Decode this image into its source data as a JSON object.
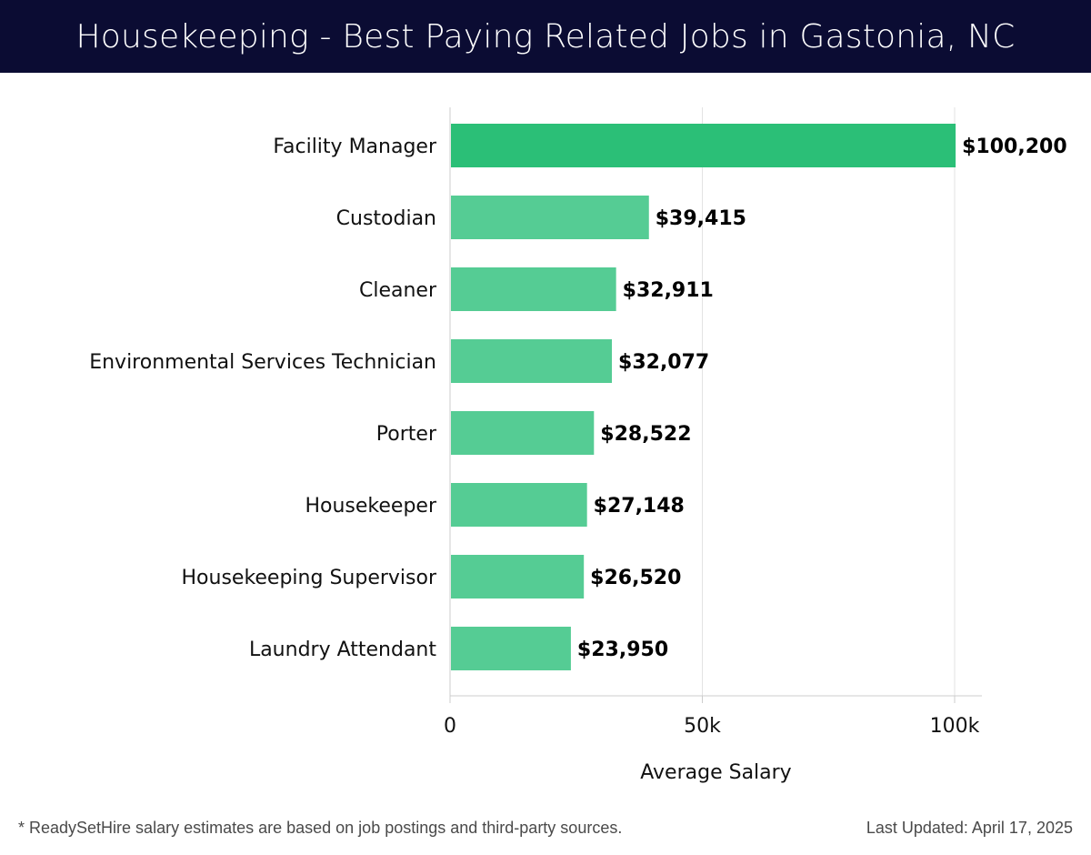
{
  "header": {
    "title": "Housekeeping - Best Paying Related Jobs in Gastonia, NC"
  },
  "chart_data": {
    "type": "bar",
    "orientation": "horizontal",
    "title": "Housekeeping - Best Paying Related Jobs in Gastonia, NC",
    "xlabel": "Average Salary",
    "ylabel": "",
    "xlim": [
      0,
      105000
    ],
    "x_ticks": [
      0,
      50000,
      100000
    ],
    "x_tick_labels": [
      "0",
      "50k",
      "100k"
    ],
    "grid": "vertical",
    "categories": [
      "Facility Manager",
      "Custodian",
      "Cleaner",
      "Environmental Services Technician",
      "Porter",
      "Housekeeper",
      "Housekeeping Supervisor",
      "Laundry Attendant"
    ],
    "values": [
      100200,
      39415,
      32911,
      32077,
      28522,
      27148,
      26520,
      23950
    ],
    "value_labels": [
      "$100,200",
      "$39,415",
      "$32,911",
      "$32,077",
      "$28,522",
      "$27,148",
      "$26,520",
      "$23,950"
    ],
    "colors": {
      "highlight": "#2bbf77",
      "bar": "#55cc94",
      "grid": "#e3e3e3",
      "axis": "#cccccc"
    }
  },
  "footer": {
    "note": "* ReadySetHire salary estimates are based on job postings and third-party sources.",
    "updated": "Last Updated: April 17, 2025"
  }
}
